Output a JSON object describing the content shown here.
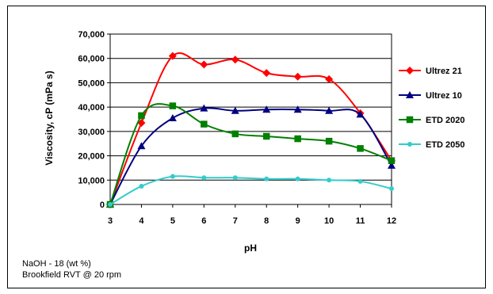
{
  "chart_data": {
    "type": "line",
    "xlabel": "pH",
    "ylabel": "Viscosity, cP (mPa s)",
    "x": [
      3,
      4,
      5,
      6,
      7,
      8,
      9,
      10,
      11,
      12
    ],
    "xlim": [
      3,
      12
    ],
    "ylim": [
      0,
      70000
    ],
    "yticks": [
      "0",
      "10,000",
      "20,000",
      "30,000",
      "40,000",
      "50,000",
      "60,000",
      "70,000"
    ],
    "xticks": [
      "3",
      "4",
      "5",
      "6",
      "7",
      "8",
      "9",
      "10",
      "11",
      "12"
    ],
    "grid": "horizontal",
    "legend": "right",
    "series": [
      {
        "name": "Ultrez 21",
        "color": "#ff0000",
        "marker": "diamond",
        "values": [
          0,
          33500,
          61000,
          57500,
          59500,
          54000,
          52500,
          51500,
          37500,
          18000
        ]
      },
      {
        "name": "Ultrez 10",
        "color": "#000080",
        "marker": "triangle",
        "values": [
          0,
          24000,
          35500,
          39500,
          38500,
          39000,
          39000,
          38500,
          37000,
          16000
        ]
      },
      {
        "name": "ETD 2020",
        "color": "#008000",
        "marker": "square",
        "values": [
          0,
          36500,
          40500,
          33000,
          29000,
          28000,
          27000,
          26000,
          23000,
          18000
        ]
      },
      {
        "name": "ETD 2050",
        "color": "#33cccc",
        "marker": "circle",
        "values": [
          0,
          7500,
          11500,
          11000,
          11000,
          10500,
          10500,
          10000,
          9500,
          6500
        ]
      }
    ]
  },
  "notes": {
    "line1": "NaOH -  18 (wt %)",
    "line2": "Brookfield RVT @ 20 rpm"
  }
}
